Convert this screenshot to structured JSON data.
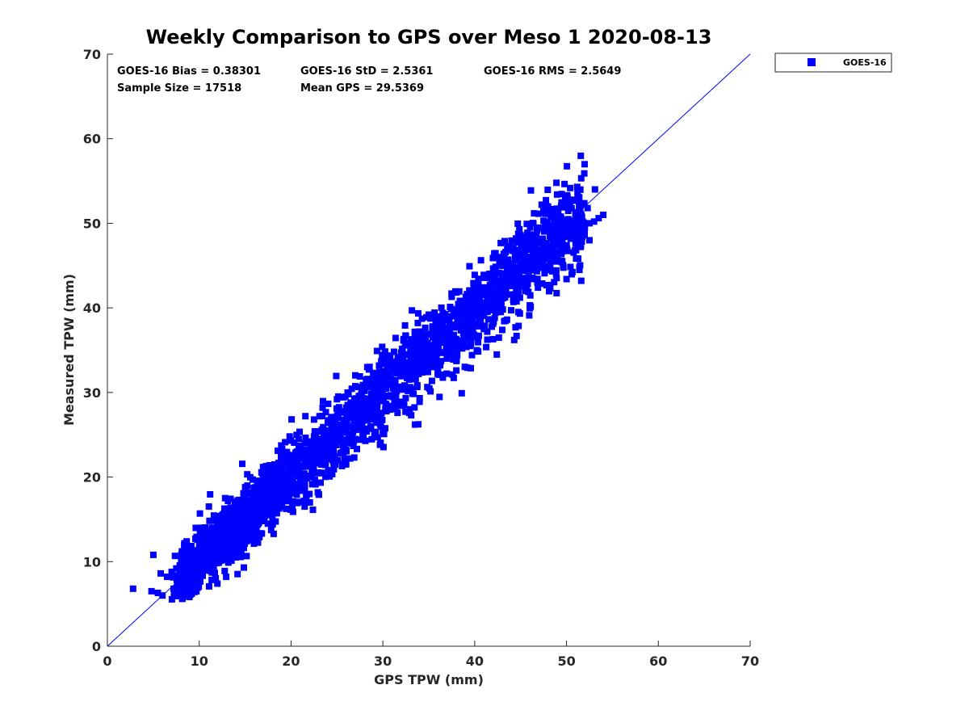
{
  "chart_data": {
    "type": "scatter",
    "title": "Weekly Comparison to GPS over Meso 1 2020-08-13",
    "xlabel": "GPS TPW (mm)",
    "ylabel": "Measured TPW (mm)",
    "xlim": [
      0,
      70
    ],
    "ylim": [
      0,
      70
    ],
    "xticks": [
      "0",
      "10",
      "20",
      "30",
      "40",
      "50",
      "60",
      "70"
    ],
    "yticks": [
      "0",
      "10",
      "20",
      "30",
      "40",
      "50",
      "60",
      "70"
    ],
    "grid": false,
    "legend_position": "outside-top-right",
    "marker": "square",
    "reference_line": {
      "x": [
        0,
        70
      ],
      "y": [
        0,
        70
      ]
    },
    "stats": {
      "bias": "GOES-16 Bias = 0.38301",
      "std": "GOES-16 StD = 2.5361",
      "rms": "GOES-16 RMS = 2.5649",
      "sample_size": "Sample Size = 17518",
      "mean_gps": "Mean GPS = 29.5369"
    },
    "series": [
      {
        "name": "GOES-16",
        "color": "#0000ff",
        "sample_size": 17518,
        "x": [
          2.8,
          4.8,
          5.0,
          5.5,
          6.0,
          6.5,
          7.0,
          7.5,
          8.0,
          8.5,
          9.0,
          9.5,
          10.0,
          10.5,
          11.0,
          11.5,
          12.0,
          12.5,
          13.0,
          13.5,
          14.0,
          14.5,
          15.0,
          15.5,
          16.0,
          16.5,
          17.0,
          17.5,
          18.0,
          18.5,
          19.0,
          19.5,
          20.0,
          20.5,
          21.0,
          21.5,
          22.0,
          22.5,
          23.0,
          23.5,
          24.0,
          24.5,
          25.0,
          25.5,
          26.0,
          26.5,
          27.0,
          27.5,
          28.0,
          28.5,
          29.0,
          29.5,
          30.0,
          30.5,
          31.0,
          31.5,
          32.0,
          32.5,
          33.0,
          33.5,
          34.0,
          34.5,
          35.0,
          35.5,
          36.0,
          36.5,
          37.0,
          37.5,
          38.0,
          38.5,
          39.0,
          39.5,
          40.0,
          40.5,
          41.0,
          41.5,
          42.0,
          42.5,
          43.0,
          43.5,
          44.0,
          44.5,
          45.0,
          45.5,
          46.0,
          46.5,
          47.0,
          47.5,
          48.0,
          48.5,
          49.0,
          49.5,
          50.0,
          50.5,
          51.0,
          51.5,
          52.0,
          52.5,
          53.0,
          53.5,
          54.0,
          8.5,
          9.2,
          10.8,
          11.5,
          13.2,
          14.7,
          16.2,
          17.8,
          19.3,
          20.8,
          22.3,
          23.8,
          25.3,
          26.8,
          28.3,
          29.8,
          31.3,
          32.8,
          34.3,
          35.8,
          37.3,
          38.8,
          40.3,
          41.8,
          43.3,
          44.8,
          46.3,
          47.8,
          49.3,
          50.8,
          52.3,
          53.1,
          12.5,
          15.0,
          17.5,
          20.0,
          22.5,
          25.0,
          27.5,
          30.0,
          32.5,
          35.0,
          37.5,
          40.0,
          42.5,
          45.0,
          47.5,
          50.0,
          10.0,
          14.0,
          18.0,
          22.0,
          26.0,
          30.0,
          34.0,
          38.0,
          42.0,
          46.0,
          50.0,
          8.0,
          11.0,
          16.5,
          21.5,
          27.0,
          31.0,
          36.0,
          41.0,
          45.5,
          49.5,
          52.5,
          5.8,
          7.3,
          9.8,
          33.5,
          29.2,
          24.8,
          44.3,
          51.4,
          43.0,
          39.5
        ],
        "y": [
          6.8,
          6.5,
          10.8,
          6.3,
          6.0,
          8.2,
          8.8,
          9.2,
          8.6,
          9.6,
          10.7,
          11.3,
          11.9,
          12.6,
          12.9,
          13.6,
          14.3,
          14.6,
          15.4,
          16.0,
          16.4,
          17.2,
          17.6,
          18.2,
          18.6,
          19.2,
          19.8,
          20.2,
          20.4,
          21.0,
          21.4,
          22.0,
          22.6,
          22.8,
          23.4,
          24.0,
          24.2,
          24.8,
          25.4,
          25.9,
          26.4,
          26.8,
          27.2,
          27.7,
          28.2,
          28.8,
          29.1,
          29.6,
          30.2,
          30.6,
          31.0,
          31.5,
          32.1,
          32.4,
          33.0,
          33.6,
          33.9,
          34.5,
          34.9,
          35.4,
          35.8,
          36.4,
          36.9,
          37.4,
          37.6,
          38.0,
          38.6,
          39.0,
          39.4,
          39.8,
          40.3,
          40.8,
          41.2,
          41.6,
          42.0,
          42.4,
          42.8,
          43.2,
          43.6,
          43.9,
          44.4,
          44.6,
          45.0,
          45.4,
          45.6,
          45.9,
          46.2,
          46.6,
          46.9,
          47.2,
          47.6,
          47.9,
          48.4,
          48.6,
          48.9,
          49.2,
          49.5,
          50.0,
          50.2,
          50.6,
          51.0,
          7.2,
          8.0,
          9.5,
          10.4,
          12.0,
          13.5,
          15.2,
          17.0,
          18.4,
          20.2,
          21.5,
          23.0,
          24.7,
          26.0,
          27.9,
          29.2,
          30.8,
          32.2,
          33.8,
          35.2,
          36.9,
          38.1,
          39.8,
          41.0,
          42.8,
          44.2,
          45.6,
          46.9,
          48.8,
          49.9,
          51.8,
          54.0,
          15.5,
          18.8,
          21.3,
          24.3,
          26.8,
          29.2,
          31.9,
          34.4,
          36.7,
          39.2,
          41.3,
          43.9,
          46.0,
          48.6,
          50.3,
          52.4,
          8.0,
          10.5,
          14.4,
          18.0,
          21.5,
          25.5,
          28.9,
          32.6,
          36.3,
          40.3,
          43.4,
          7.0,
          9.2,
          14.6,
          19.0,
          24.5,
          28.4,
          32.9,
          37.5,
          42.0,
          45.4,
          48.0,
          8.6,
          6.2,
          12.6,
          26.2,
          25.0,
          21.5,
          36.2,
          44.8,
          37.4,
          35.5
        ]
      }
    ]
  }
}
